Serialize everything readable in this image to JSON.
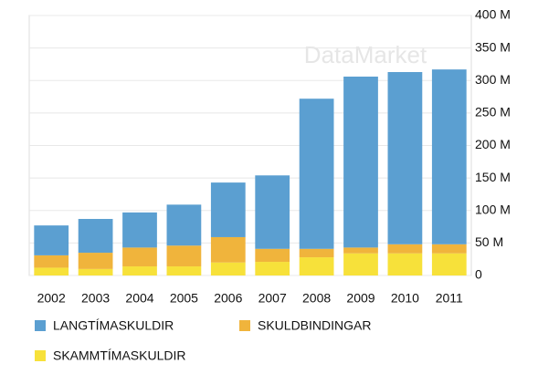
{
  "chart_data": {
    "type": "stacked_bar",
    "watermark": "DataMarket",
    "categories": [
      "2002",
      "2003",
      "2004",
      "2005",
      "2006",
      "2007",
      "2008",
      "2009",
      "2010",
      "2011"
    ],
    "series": [
      {
        "name": "LANGTÍMASKULDIR",
        "color": "#5b9fd1",
        "values": [
          46000000,
          52000000,
          54000000,
          63000000,
          84000000,
          113000000,
          231000000,
          263000000,
          265000000,
          269000000
        ]
      },
      {
        "name": "SKULDBINDINGAR",
        "color": "#f0b43c",
        "values": [
          19000000,
          25000000,
          29000000,
          32000000,
          39000000,
          20000000,
          13000000,
          9000000,
          14000000,
          14000000
        ]
      },
      {
        "name": "SKAMMTÍMASKULDIR",
        "color": "#f7e13a",
        "values": [
          12000000,
          10000000,
          14000000,
          14000000,
          20000000,
          21000000,
          28000000,
          34000000,
          34000000,
          34000000
        ]
      }
    ],
    "ylim": [
      0,
      400000000
    ],
    "yticks": [
      0,
      {
        "value": 50000000,
        "label": "50 M"
      },
      {
        "value": 100000000,
        "label": "100 M"
      },
      {
        "value": 150000000,
        "label": "150 M"
      },
      {
        "value": 200000000,
        "label": "200 M"
      },
      {
        "value": 250000000,
        "label": "250 M"
      },
      {
        "value": 300000000,
        "label": "300 M"
      },
      {
        "value": 350000000,
        "label": "350 M"
      },
      {
        "value": 400000000,
        "label": "400 M"
      }
    ],
    "grid": true
  }
}
